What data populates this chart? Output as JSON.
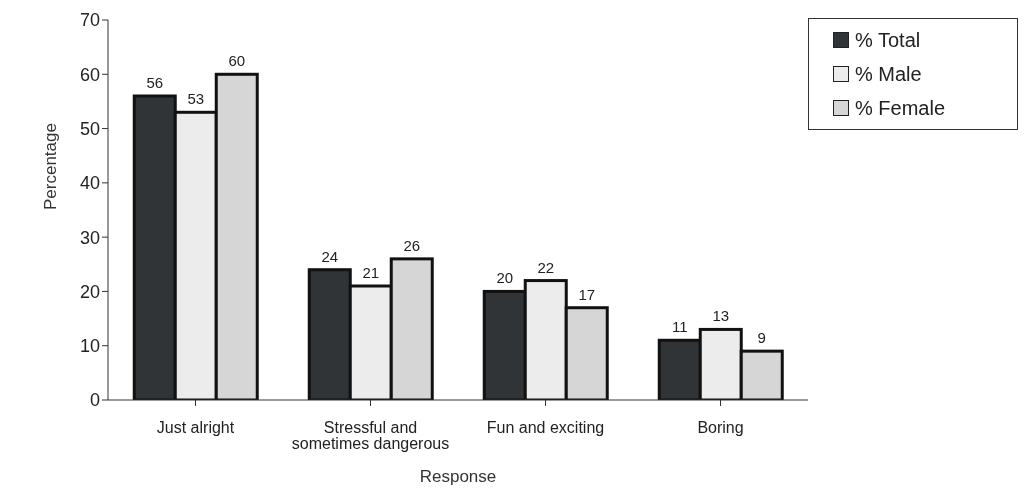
{
  "chart_data": {
    "type": "bar",
    "xlabel": "Response",
    "ylabel": "Percentage",
    "categories": [
      "Just alright",
      "Stressful and sometimes dangerous",
      "Fun and exciting",
      "Boring"
    ],
    "series": [
      {
        "name": "% Total",
        "color": "#303436",
        "values": [
          56,
          24,
          20,
          11
        ]
      },
      {
        "name": "% Male",
        "color": "#ececec",
        "values": [
          53,
          21,
          22,
          13
        ]
      },
      {
        "name": "% Female",
        "color": "#d6d6d6",
        "values": [
          60,
          26,
          17,
          9
        ]
      }
    ],
    "ylim": [
      0,
      70
    ],
    "yticks": [
      0,
      10,
      20,
      30,
      40,
      50,
      60,
      70
    ],
    "grid": false,
    "legend": "top right",
    "data_labels": true
  }
}
